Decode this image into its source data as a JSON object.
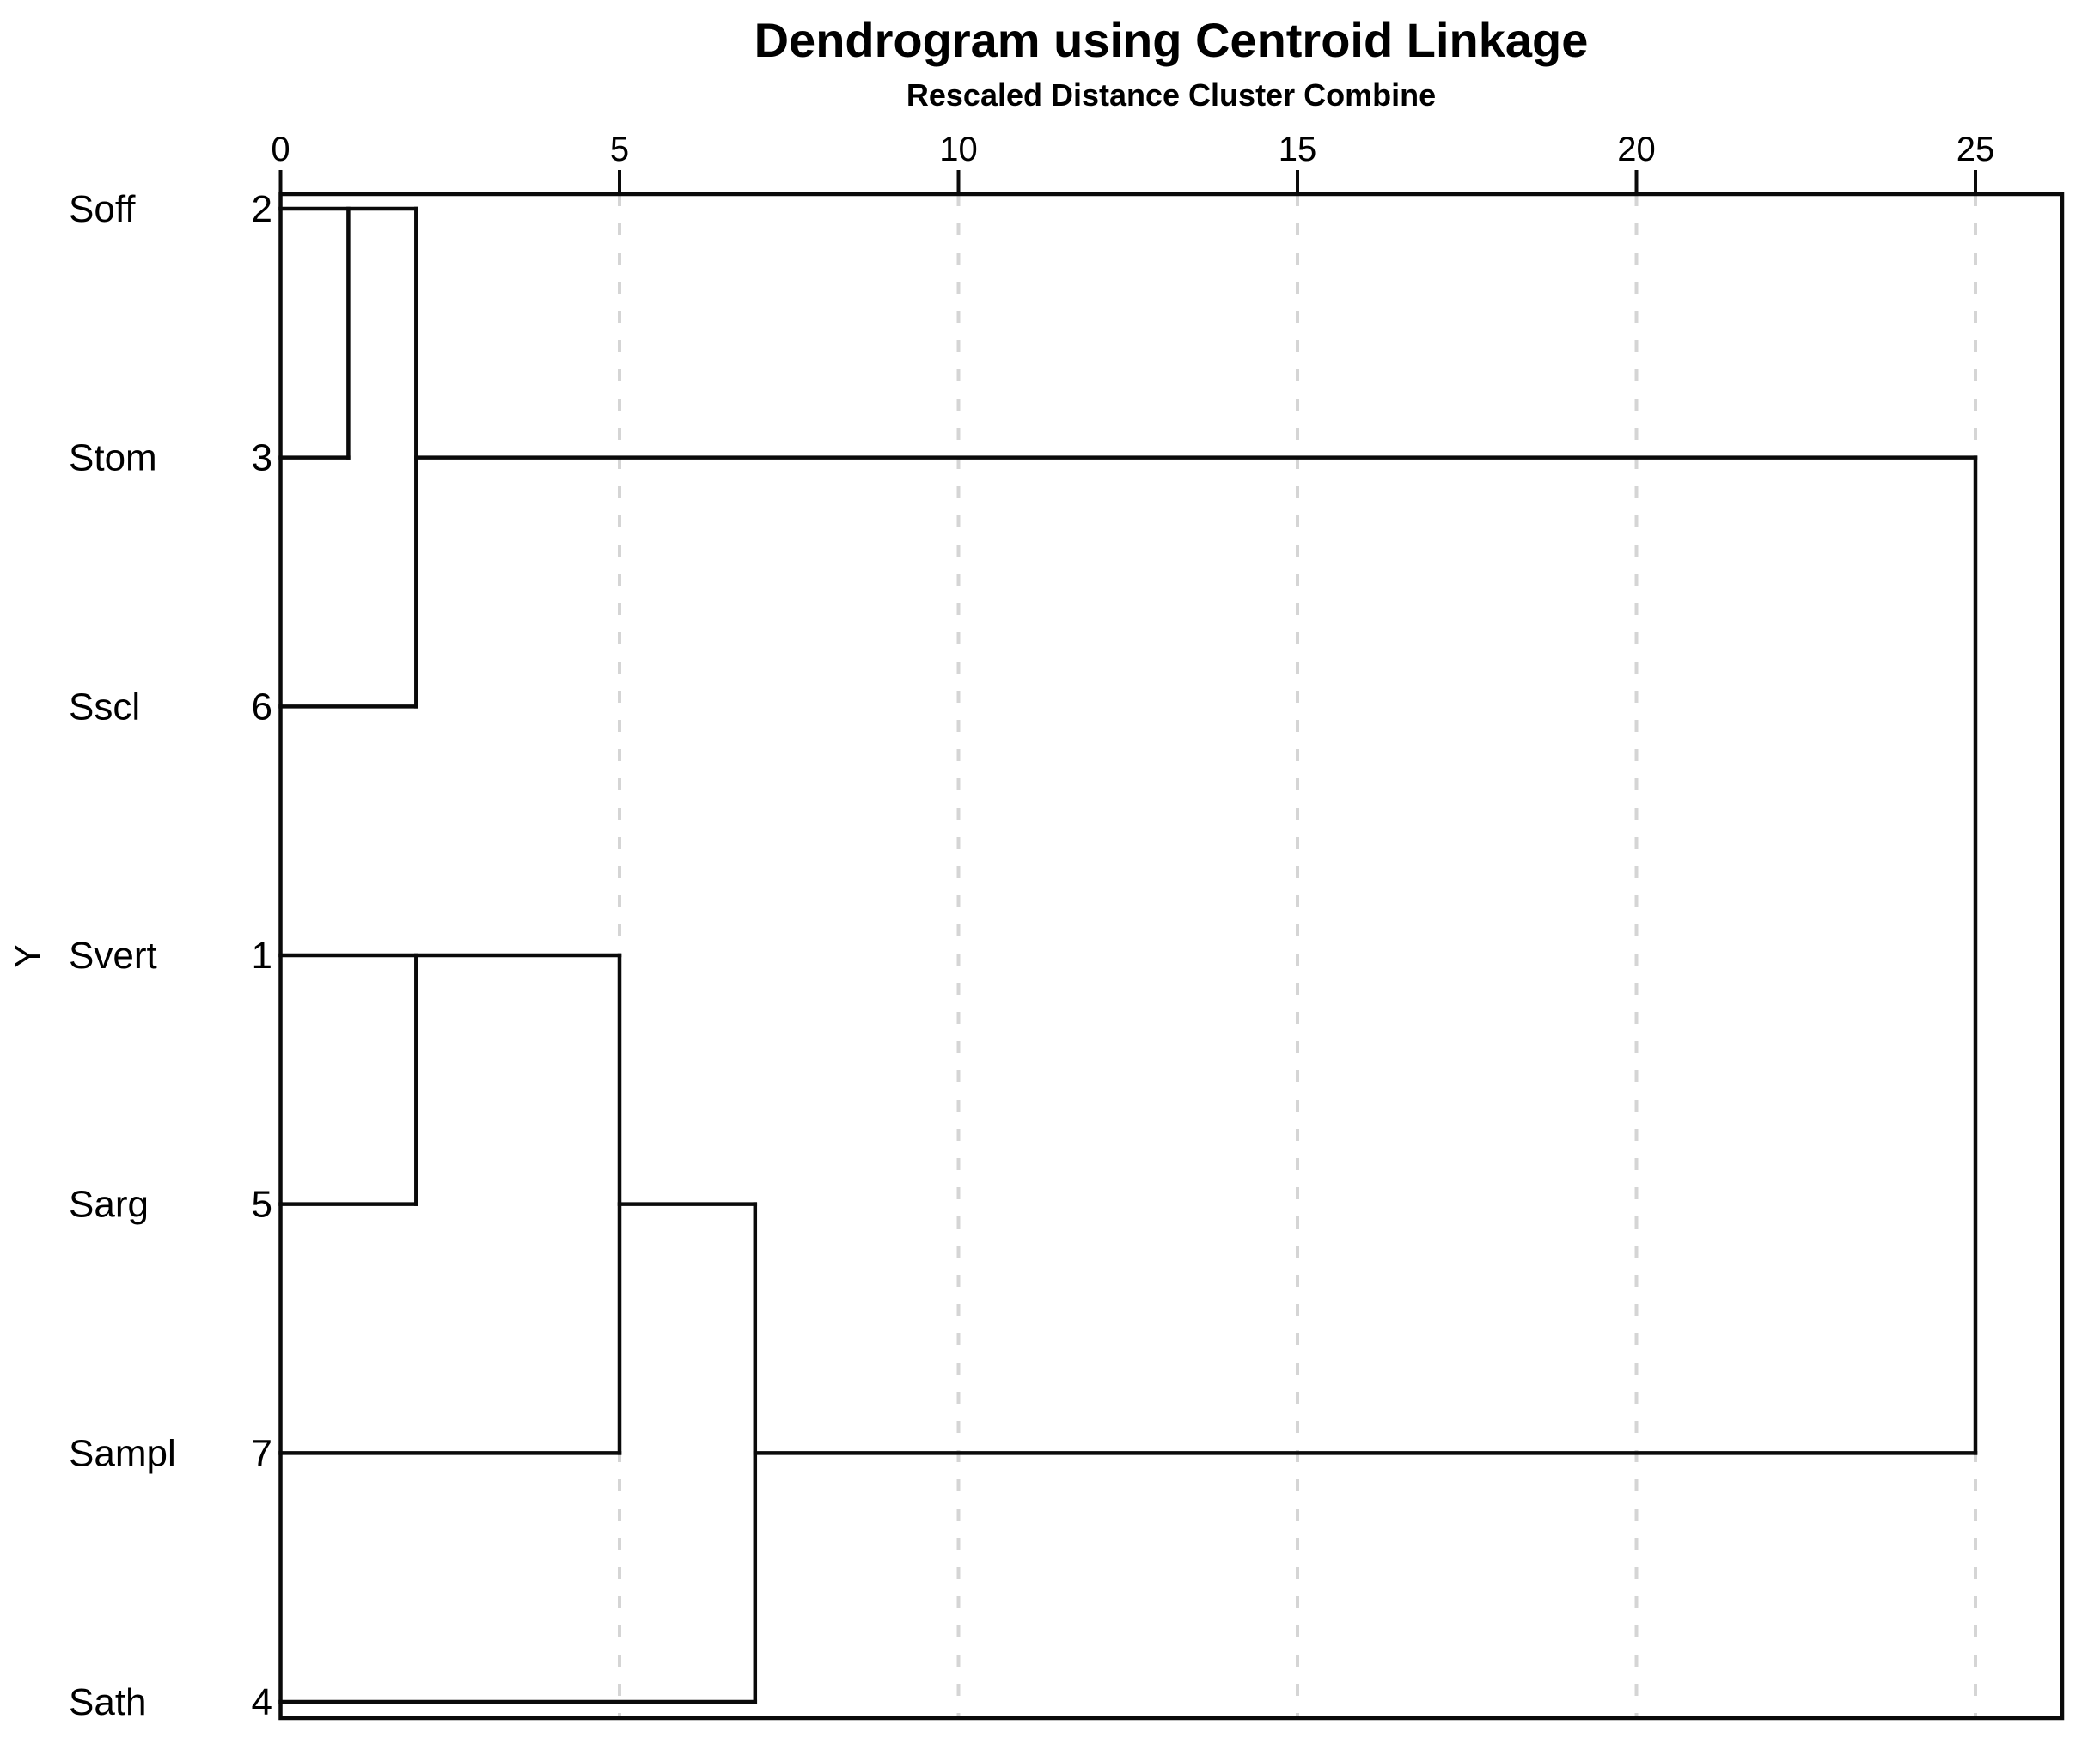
{
  "page": {
    "background": "#ffffff"
  },
  "chart_data": {
    "type": "dendrogram",
    "orientation": "horizontal",
    "title": "Dendrogram using Centroid Linkage",
    "subtitle": "Rescaled Distance Cluster Combine",
    "y_axis_label": "Y",
    "x_axis": {
      "range": [
        0,
        25
      ],
      "ticks": [
        "0",
        "5",
        "10",
        "15",
        "20",
        "25"
      ],
      "tick_values": [
        0,
        5,
        10,
        15,
        20,
        25
      ],
      "gridline_values": [
        5,
        10,
        15,
        20,
        25
      ],
      "gridline_style": "dashed",
      "ticks_position": "top"
    },
    "leaves": [
      {
        "label": "Soff",
        "case_number": "2",
        "row": 0
      },
      {
        "label": "Stom",
        "case_number": "3",
        "row": 1
      },
      {
        "label": "Sscl",
        "case_number": "6",
        "row": 2
      },
      {
        "label": "Svert",
        "case_number": "1",
        "row": 3
      },
      {
        "label": "Sarg",
        "case_number": "5",
        "row": 4
      },
      {
        "label": "Sampl",
        "case_number": "7",
        "row": 5
      },
      {
        "label": "Sath",
        "case_number": "4",
        "row": 6
      }
    ],
    "merges": [
      {
        "clusters": [
          "Soff(2)",
          "Stom(3)"
        ],
        "distance": 1
      },
      {
        "clusters": [
          "Soff+Stom",
          "Sscl(6)"
        ],
        "distance": 2
      },
      {
        "clusters": [
          "Svert(1)",
          "Sarg(5)"
        ],
        "distance": 2
      },
      {
        "clusters": [
          "Svert+Sarg",
          "Sampl(7)"
        ],
        "distance": 5
      },
      {
        "clusters": [
          "Svert+Sarg+Sampl",
          "Sath(4)"
        ],
        "distance": 7
      },
      {
        "clusters": [
          "Soff+Stom+Sscl",
          "Svert+Sarg+Sampl+Sath"
        ],
        "distance": 25
      }
    ],
    "segments": {
      "horizontal": [
        {
          "row": 0,
          "d1": 0,
          "d2": 2
        },
        {
          "row": 1,
          "d1": 0,
          "d2": 1
        },
        {
          "row": 1,
          "d1": 2,
          "d2": 25
        },
        {
          "row": 2,
          "d1": 0,
          "d2": 2
        },
        {
          "row": 3,
          "d1": 0,
          "d2": 5
        },
        {
          "row": 4,
          "d1": 0,
          "d2": 2
        },
        {
          "row": 4,
          "d1": 5,
          "d2": 7
        },
        {
          "row": 5,
          "d1": 0,
          "d2": 5
        },
        {
          "row": 5,
          "d1": 7,
          "d2": 25
        },
        {
          "row": 6,
          "d1": 0,
          "d2": 7
        }
      ],
      "vertical": [
        {
          "d": 1,
          "row1": 0,
          "row2": 1
        },
        {
          "d": 2,
          "row1": 0,
          "row2": 2
        },
        {
          "d": 2,
          "row1": 3,
          "row2": 4
        },
        {
          "d": 5,
          "row1": 3,
          "row2": 5
        },
        {
          "d": 7,
          "row1": 4,
          "row2": 6
        },
        {
          "d": 25,
          "row1": 1,
          "row2": 5
        }
      ]
    },
    "colors": {
      "line": "#0a0a0a",
      "grid": "#d5d5d5",
      "text": "#000000",
      "background": "#ffffff"
    }
  }
}
